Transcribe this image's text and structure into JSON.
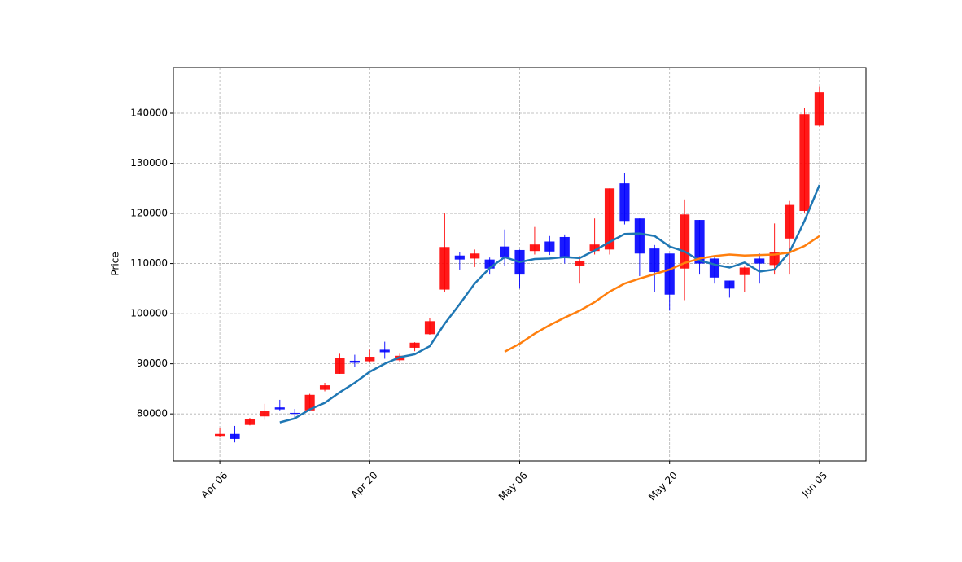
{
  "chart_data": {
    "type": "candlestick",
    "ylabel": "Price",
    "categories": [
      "Apr 06",
      null,
      null,
      null,
      null,
      null,
      null,
      null,
      null,
      null,
      "Apr 20",
      null,
      null,
      null,
      null,
      null,
      null,
      null,
      null,
      null,
      "May 06",
      null,
      null,
      null,
      null,
      null,
      null,
      null,
      null,
      null,
      "May 20",
      null,
      null,
      null,
      null,
      null,
      null,
      null,
      null,
      null,
      "Jun 05"
    ],
    "open": [
      75600,
      76000,
      77800,
      79500,
      81300,
      80200,
      80700,
      84800,
      88000,
      90600,
      90500,
      92800,
      90700,
      93200,
      95900,
      104800,
      111600,
      111000,
      110800,
      113400,
      112700,
      112500,
      114400,
      115300,
      109500,
      112500,
      112800,
      126000,
      119000,
      113000,
      112000,
      109000,
      118700,
      111000,
      106600,
      107700,
      111000,
      109700,
      115000,
      120500,
      137500
    ],
    "high": [
      77200,
      77600,
      79200,
      82000,
      82800,
      81000,
      84000,
      86200,
      92000,
      91800,
      92800,
      94400,
      92000,
      94300,
      99200,
      120000,
      112300,
      112800,
      111200,
      116800,
      112800,
      117300,
      115500,
      115800,
      111500,
      119000,
      125000,
      128000,
      119000,
      113700,
      112000,
      122800,
      118700,
      111300,
      106600,
      109400,
      112000,
      118000,
      122500,
      141000,
      145300
    ],
    "low": [
      75300,
      74300,
      77700,
      78800,
      80700,
      79200,
      80500,
      84500,
      88000,
      89400,
      90200,
      91000,
      90400,
      92500,
      95800,
      104400,
      108800,
      109300,
      107800,
      109600,
      105000,
      111800,
      111700,
      110000,
      106000,
      111800,
      111800,
      117800,
      107500,
      104300,
      100600,
      102700,
      107800,
      106000,
      103200,
      104300,
      106000,
      107800,
      107800,
      120200,
      137300
    ],
    "close": [
      76000,
      75000,
      79000,
      80600,
      80900,
      80000,
      83800,
      85700,
      91200,
      90200,
      91400,
      92300,
      91600,
      94200,
      98500,
      113300,
      110800,
      112000,
      109000,
      111200,
      107800,
      113800,
      112400,
      111200,
      110500,
      113800,
      125000,
      118500,
      112000,
      108300,
      103800,
      119800,
      110000,
      107200,
      105000,
      109200,
      110000,
      112200,
      121700,
      139800,
      144200
    ],
    "up_color": "#ff0000",
    "down_color": "#0000ff",
    "series": [
      {
        "color": "#1f77b4",
        "values": [
          null,
          null,
          null,
          null,
          78300,
          79100,
          80900,
          82200,
          84300,
          86200,
          88400,
          90000,
          91300,
          91900,
          93500,
          98000,
          101900,
          106000,
          109100,
          111300,
          110300,
          110900,
          111000,
          111300,
          111100,
          112600,
          114300,
          115900,
          116000,
          115500,
          113400,
          112400,
          110600,
          109800,
          109200,
          110200,
          108400,
          108800,
          112300,
          118500,
          125700
        ]
      },
      {
        "color": "#ff7f0e",
        "values": [
          null,
          null,
          null,
          null,
          null,
          null,
          null,
          null,
          null,
          null,
          null,
          null,
          null,
          null,
          null,
          null,
          null,
          null,
          null,
          92400,
          94000,
          96000,
          97700,
          99200,
          100600,
          102300,
          104400,
          106000,
          107000,
          107900,
          108800,
          110100,
          111000,
          111500,
          111800,
          111600,
          111700,
          111800,
          112200,
          113500,
          115500
        ]
      }
    ],
    "ylim": [
      70600,
      149100
    ],
    "yticks": [
      80000,
      90000,
      100000,
      110000,
      120000,
      130000,
      140000
    ],
    "grid": true
  }
}
